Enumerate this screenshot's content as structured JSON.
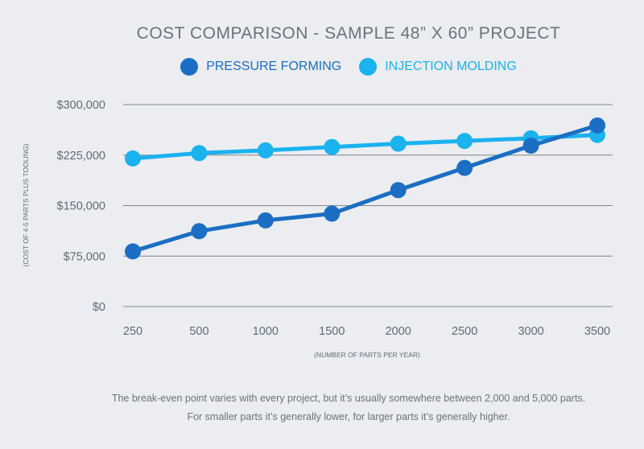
{
  "colors": {
    "background": "#ebedf0",
    "pressure_forming": "#1b6ec4",
    "injection_molding": "#1ab2ef",
    "grid": "#7f868c",
    "text": "#5f6b75"
  },
  "chart_data": {
    "type": "line",
    "title": "COST COMPARISON - SAMPLE 48” X 60” PROJECT",
    "xlabel": "(NUMBER OF PARTS PER YEAR)",
    "ylabel": "(COST OF 4-5 PARTS PLUS TOOLING)",
    "categories": [
      "250",
      "500",
      "1000",
      "1500",
      "2000",
      "2500",
      "3000",
      "3500"
    ],
    "yticks": [
      "$0",
      "$75,000",
      "$150,000",
      "$225,000",
      "$300,000"
    ],
    "ytick_values": [
      0,
      75000,
      150000,
      225000,
      300000
    ],
    "ylim": [
      0,
      300000
    ],
    "grid": true,
    "legend_position": "top-center",
    "series": [
      {
        "name": "PRESSURE FORMING",
        "color": "#1b6ec4",
        "values": [
          82000,
          112000,
          128000,
          138000,
          173000,
          206000,
          239000,
          269000
        ]
      },
      {
        "name": "INJECTION MOLDING",
        "color": "#1ab2ef",
        "values": [
          220000,
          228000,
          232000,
          237000,
          242000,
          246000,
          250000,
          255000
        ]
      }
    ]
  },
  "footnote": {
    "line1": "The break-even point varies with every project, but it’s usually somewhere between 2,000 and 5,000 parts.",
    "line2": "For smaller parts it’s generally lower, for larger parts it’s generally higher."
  }
}
